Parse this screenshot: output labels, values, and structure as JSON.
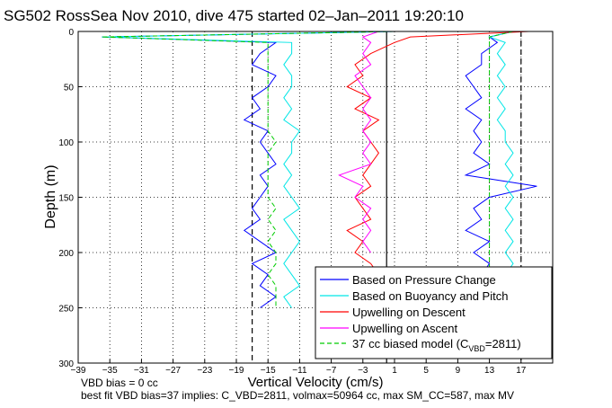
{
  "chart_data": {
    "type": "line",
    "title": "SG502 RossSea Nov 2010, dive 475 started 02–Jan–2011 19:20:10",
    "xlabel": "Vertical Velocity (cm/s)",
    "ylabel": "Depth (m)",
    "xlim": [
      -39,
      21
    ],
    "ylim": [
      300,
      0
    ],
    "y_reversed": true,
    "grid": true,
    "xticks": [
      -39,
      -35,
      -31,
      -27,
      -23,
      -19,
      -15,
      -11,
      -7,
      -3,
      1,
      5,
      9,
      13,
      17
    ],
    "xtick_labels": [
      "−39",
      "−35",
      "−31",
      "−27",
      "−23",
      "−19",
      "−15",
      "−11",
      "−7",
      "−3",
      "1",
      "5",
      "9",
      "13",
      "17"
    ],
    "yticks": [
      0,
      50,
      100,
      150,
      200,
      250,
      300
    ],
    "ytick_labels": [
      "0",
      "50",
      "100",
      "150",
      "200",
      "250",
      "300"
    ],
    "vertical_lines": [
      {
        "x": -17,
        "style": "dashed",
        "color": "#000000"
      },
      {
        "x": 0,
        "style": "solid",
        "color": "#000000"
      },
      {
        "x": 17,
        "style": "dashed",
        "color": "#000000"
      }
    ],
    "legend_position": "bottom-right",
    "series": [
      {
        "name": "Based on Pressure Change",
        "color": "#0000ff",
        "style": "solid",
        "y": [
          0,
          5,
          10,
          20,
          30,
          40,
          50,
          60,
          70,
          80,
          90,
          100,
          110,
          120,
          130,
          140,
          150,
          160,
          170,
          180,
          190,
          200,
          210,
          220,
          230,
          240,
          250
        ],
        "x_descent": [
          1,
          -36,
          -14,
          -16,
          -17,
          -14,
          -15,
          -17,
          -16,
          -18,
          -15,
          -16,
          -15,
          -14,
          -16,
          -15,
          -16,
          -17,
          -16,
          -18,
          -16,
          -14,
          -17,
          -15,
          -16,
          -14,
          -16
        ],
        "x_ascent": [
          16,
          13,
          14,
          12,
          12,
          10,
          11,
          12,
          10,
          12,
          11,
          12,
          11,
          13,
          10,
          19,
          13,
          11,
          12,
          10,
          13,
          11,
          13,
          12,
          11,
          13,
          12
        ]
      },
      {
        "name": "Based on Buoyancy and Pitch",
        "color": "#00e6e6",
        "style": "solid",
        "y": [
          0,
          5,
          10,
          20,
          30,
          40,
          50,
          60,
          70,
          80,
          90,
          100,
          110,
          120,
          130,
          140,
          150,
          160,
          170,
          180,
          190,
          200,
          210,
          220,
          230,
          240,
          250
        ],
        "x_descent": [
          1,
          -36,
          -12,
          -12,
          -13,
          -12,
          -12,
          -13,
          -12,
          -13,
          -11,
          -12,
          -12,
          -13,
          -12,
          -13,
          -12,
          -11,
          -13,
          -12,
          -11,
          -12,
          -13,
          -12,
          -11,
          -13,
          -12
        ],
        "x_ascent": [
          16,
          13,
          15,
          14,
          15,
          14,
          15,
          14,
          15,
          14,
          15,
          15,
          16,
          15,
          16,
          15,
          16,
          15,
          16,
          15,
          16,
          15,
          16,
          15,
          16,
          15,
          16
        ]
      },
      {
        "name": "Upwelling on Descent",
        "color": "#ff0000",
        "style": "solid",
        "y": [
          0,
          5,
          10,
          20,
          30,
          40,
          50,
          60,
          70,
          80,
          90,
          100,
          110,
          120,
          130,
          140,
          150,
          160,
          170,
          180,
          190,
          200,
          210,
          220
        ],
        "x": [
          18,
          3,
          1,
          -2,
          -4,
          -3,
          -5,
          -2,
          -4,
          -1,
          -3,
          -2,
          -1,
          -2,
          -3,
          -2,
          -4,
          -3,
          -2,
          -5,
          -3,
          -4,
          -2,
          -1
        ]
      },
      {
        "name": "Upwelling on Ascent",
        "color": "#ff00ff",
        "style": "solid",
        "y": [
          0,
          5,
          10,
          20,
          30,
          40,
          50,
          60,
          70,
          80,
          90,
          100,
          110,
          120,
          130,
          140,
          150,
          160,
          170,
          180,
          190,
          200
        ],
        "x": [
          -1,
          -3,
          -2,
          -3,
          -2,
          -4,
          -3,
          -2,
          -3,
          -2,
          -3,
          -2,
          -3,
          -2,
          -6,
          -3,
          -4,
          -2,
          -3,
          -2,
          -3,
          -2
        ]
      },
      {
        "name": "37 cc biased model (C_VBD=2811)",
        "color": "#00cc00",
        "style": "dashed",
        "y": [
          0,
          5,
          10,
          20,
          30,
          40,
          50,
          60,
          70,
          80,
          90,
          100,
          110,
          120,
          130,
          140,
          150,
          160,
          170,
          180,
          190,
          200,
          210,
          220,
          230,
          240,
          250
        ],
        "x_descent": [
          1,
          -36,
          -15,
          -15,
          -15,
          -15,
          -15,
          -15,
          -15,
          -15,
          -15,
          -14,
          -15,
          -15,
          -15,
          -15,
          -15,
          -14,
          -15,
          -14,
          -15,
          -14,
          -14,
          -15,
          -14,
          -14,
          -14
        ],
        "x_ascent": [
          16,
          13,
          13,
          13,
          13,
          13,
          13,
          13,
          13,
          13,
          13,
          13,
          13,
          13,
          13,
          13,
          13,
          13,
          13,
          13,
          13,
          13,
          13,
          13,
          13,
          13,
          13
        ]
      }
    ],
    "annotations": [
      "VBD bias = 0 cc",
      "best fit VBD bias=37 implies: C_VBD=2811, volmax=50964 cc, max SM_CC=587, max MV"
    ]
  },
  "legend": {
    "items": [
      {
        "label": "Based on Pressure Change",
        "color": "#0000ff"
      },
      {
        "label": "Based on Buoyancy and Pitch",
        "color": "#00e6e6"
      },
      {
        "label": "Upwelling on Descent",
        "color": "#ff0000"
      },
      {
        "label": "Upwelling on Ascent",
        "color": "#ff00ff"
      }
    ],
    "model_label_prefix": "37 cc biased model (C",
    "model_label_sub": "VBD",
    "model_label_suffix": "=2811)",
    "model_color": "#00cc00"
  }
}
